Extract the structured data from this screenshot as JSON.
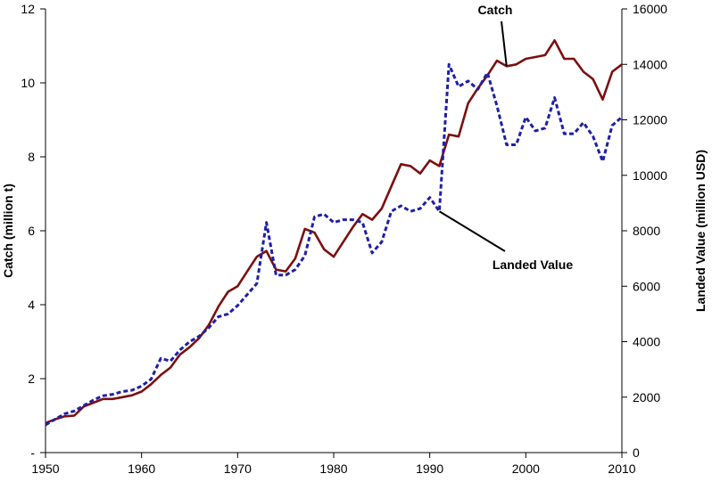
{
  "chart_data": {
    "type": "line",
    "x_axis": {
      "range": [
        1950,
        2010
      ],
      "ticks": [
        "1950",
        "1960",
        "1970",
        "1980",
        "1990",
        "2000",
        "2010"
      ]
    },
    "y_left": {
      "label": "Catch (million t)",
      "range": [
        0,
        12
      ],
      "ticks": [
        "-",
        "2",
        "4",
        "6",
        "8",
        "10",
        "12"
      ]
    },
    "y_right": {
      "label": "Landed Value (million  USD)",
      "range": [
        0,
        16000
      ],
      "ticks": [
        "0",
        "2000",
        "4000",
        "6000",
        "8000",
        "10000",
        "12000",
        "14000",
        "16000"
      ]
    },
    "grid": false,
    "legend": "none",
    "series": [
      {
        "name": "Catch",
        "axis": "left",
        "color": "#7b1010",
        "style": "solid",
        "x": [
          1950,
          1951,
          1952,
          1953,
          1954,
          1955,
          1956,
          1957,
          1958,
          1959,
          1960,
          1961,
          1962,
          1963,
          1964,
          1965,
          1966,
          1967,
          1968,
          1969,
          1970,
          1971,
          1972,
          1973,
          1974,
          1975,
          1976,
          1977,
          1978,
          1979,
          1980,
          1981,
          1982,
          1983,
          1984,
          1985,
          1986,
          1987,
          1988,
          1989,
          1990,
          1991,
          1992,
          1993,
          1994,
          1995,
          1996,
          1997,
          1998,
          1999,
          2000,
          2001,
          2002,
          2003,
          2004,
          2005,
          2006,
          2007,
          2008,
          2009,
          2010
        ],
        "y": [
          0.8,
          0.9,
          0.98,
          1.0,
          1.25,
          1.35,
          1.45,
          1.45,
          1.5,
          1.55,
          1.65,
          1.85,
          2.1,
          2.3,
          2.65,
          2.85,
          3.1,
          3.45,
          3.95,
          4.35,
          4.5,
          4.9,
          5.3,
          5.45,
          4.95,
          4.9,
          5.25,
          6.05,
          5.95,
          5.5,
          5.3,
          5.7,
          6.1,
          6.45,
          6.3,
          6.6,
          7.2,
          7.8,
          7.75,
          7.55,
          7.9,
          7.75,
          8.6,
          8.55,
          9.45,
          9.85,
          10.2,
          10.6,
          10.45,
          10.5,
          10.65,
          10.7,
          10.75,
          11.15,
          10.65,
          10.65,
          10.3,
          10.1,
          9.55,
          10.3,
          10.5
        ]
      },
      {
        "name": "Landed Value",
        "axis": "right",
        "color": "#1f1fa8",
        "style": "dashed",
        "x": [
          1950,
          1951,
          1952,
          1953,
          1954,
          1955,
          1956,
          1957,
          1958,
          1959,
          1960,
          1961,
          1962,
          1963,
          1964,
          1965,
          1966,
          1967,
          1968,
          1969,
          1970,
          1971,
          1972,
          1973,
          1974,
          1975,
          1976,
          1977,
          1978,
          1979,
          1980,
          1981,
          1982,
          1983,
          1984,
          1985,
          1986,
          1987,
          1988,
          1989,
          1990,
          1991,
          1992,
          1993,
          1994,
          1995,
          1996,
          1997,
          1998,
          1999,
          2000,
          2001,
          2002,
          2003,
          2004,
          2005,
          2006,
          2007,
          2008,
          2009,
          2010
        ],
        "y": [
          1000,
          1200,
          1400,
          1500,
          1700,
          1900,
          2050,
          2100,
          2200,
          2250,
          2400,
          2650,
          3400,
          3300,
          3700,
          4000,
          4200,
          4500,
          4900,
          5000,
          5300,
          5700,
          6100,
          8300,
          6400,
          6400,
          6600,
          7100,
          8500,
          8600,
          8300,
          8400,
          8400,
          8300,
          7200,
          7600,
          8700,
          8900,
          8700,
          8800,
          9200,
          8700,
          14000,
          13200,
          13400,
          13100,
          13700,
          12500,
          11100,
          11100,
          12100,
          11600,
          11700,
          12800,
          11500,
          11500,
          11900,
          11400,
          10500,
          11800,
          12100
        ]
      }
    ],
    "annotations": [
      {
        "text": "Catch",
        "target_series": "Catch"
      },
      {
        "text": "Landed Value",
        "target_series": "Landed Value"
      }
    ]
  }
}
